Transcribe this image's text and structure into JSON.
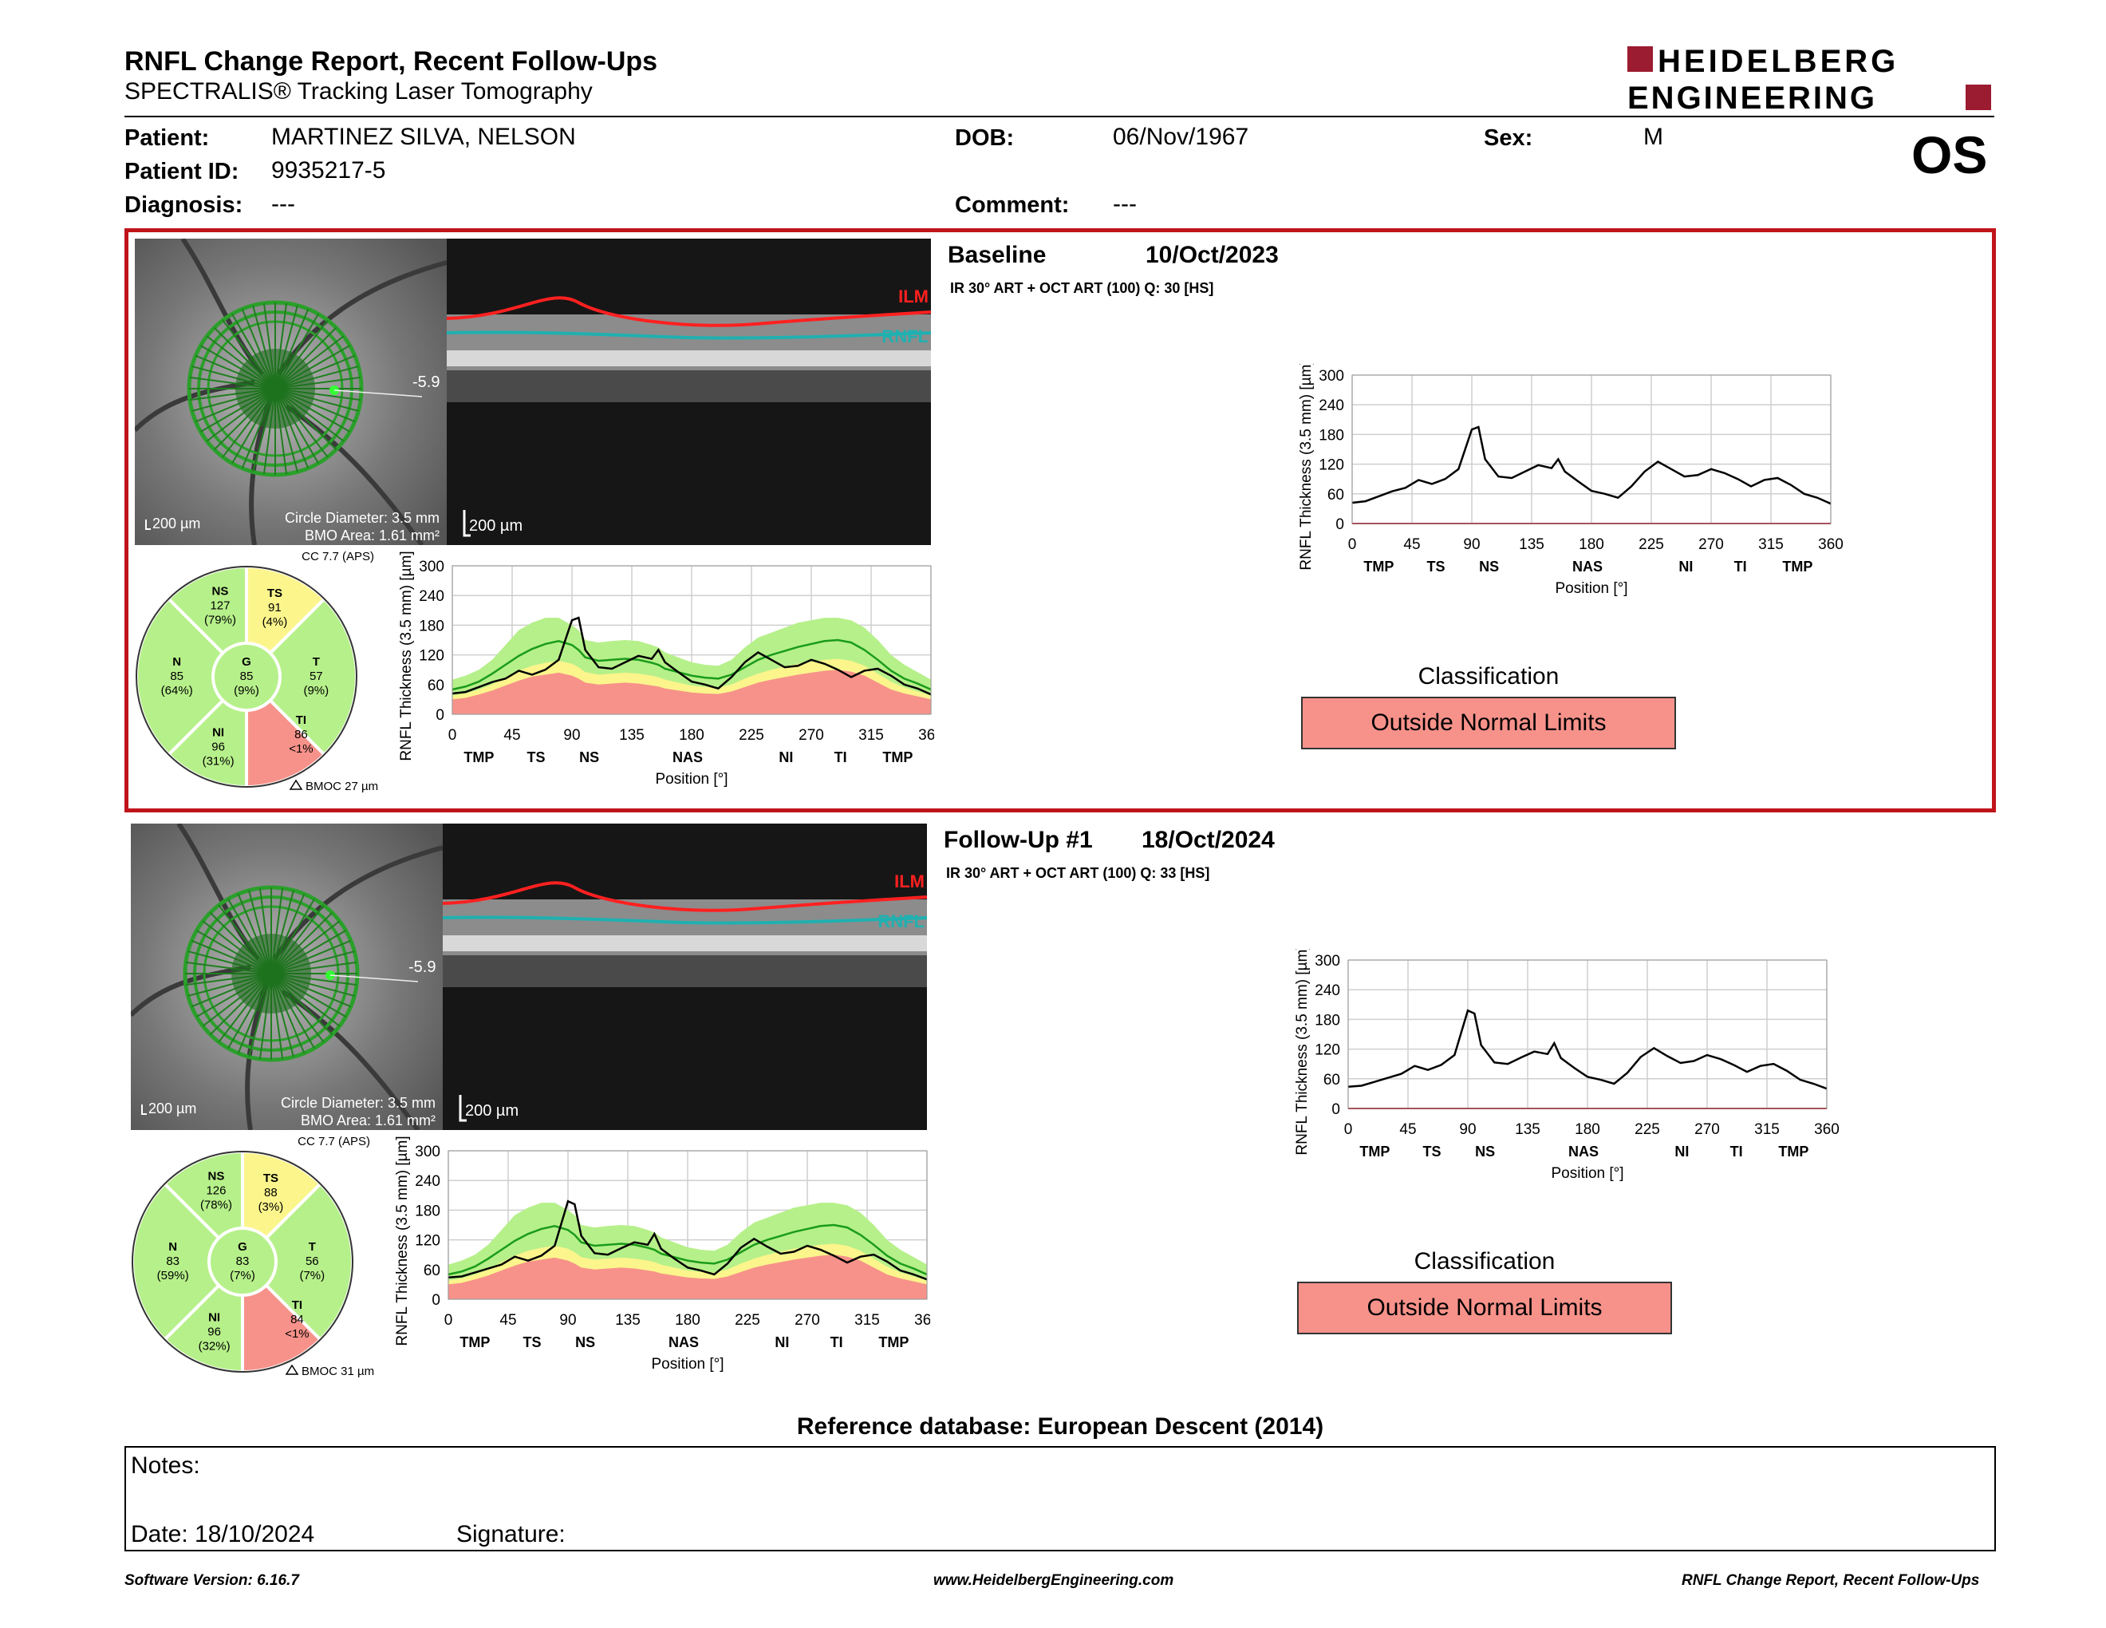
{
  "report": {
    "title": "RNFL Change Report, Recent Follow-Ups",
    "subtitle": "SPECTRALIS® Tracking Laser Tomography",
    "logo_line1": "HEIDELBERG",
    "logo_line2": "ENGINEERING",
    "eye": "OS"
  },
  "patient": {
    "name_label": "Patient:",
    "name": "MARTINEZ SILVA, NELSON",
    "id_label": "Patient ID:",
    "id": "9935217-5",
    "diagnosis_label": "Diagnosis:",
    "diagnosis": "---",
    "dob_label": "DOB:",
    "dob": "06/Nov/1967",
    "comment_label": "Comment:",
    "comment": "---",
    "sex_label": "Sex:",
    "sex": "M"
  },
  "exams": [
    {
      "label": "Baseline",
      "date": "10/Oct/2023",
      "scan_info": "IR 30° ART + OCT ART (100) Q: 30 [HS]",
      "fundus_scale": "200 µm",
      "circle_diameter": "Circle Diameter: 3.5 mm",
      "bmo_area": "BMO Area: 1.61 mm²",
      "angle": "-5.9",
      "oct_scale": "200 µm",
      "ilm": "ILM",
      "rnfl": "RNFL",
      "cc": "CC 7.7 (APS)",
      "bmoc": "BMOC 27 µm",
      "sectors": {
        "NS": {
          "name": "NS",
          "value": "127",
          "pct": "(79%)",
          "color": "#b6f08a"
        },
        "TS": {
          "name": "TS",
          "value": "91",
          "pct": "(4%)",
          "color": "#fbf58c"
        },
        "N": {
          "name": "N",
          "value": "85",
          "pct": "(64%)",
          "color": "#b6f08a"
        },
        "G": {
          "name": "G",
          "value": "85",
          "pct": "(9%)",
          "color": "#b6f08a"
        },
        "T": {
          "name": "T",
          "value": "57",
          "pct": "(9%)",
          "color": "#b6f08a"
        },
        "NI": {
          "name": "NI",
          "value": "96",
          "pct": "(31%)",
          "color": "#b6f08a"
        },
        "TI": {
          "name": "TI",
          "value": "86",
          "pct": "<1%",
          "color": "#f7928a"
        }
      },
      "classification_title": "Classification",
      "classification": "Outside Normal Limits"
    },
    {
      "label": "Follow-Up #1",
      "date": "18/Oct/2024",
      "scan_info": "IR 30° ART + OCT ART (100) Q: 33 [HS]",
      "fundus_scale": "200 µm",
      "circle_diameter": "Circle Diameter: 3.5 mm",
      "bmo_area": "BMO Area: 1.61 mm²",
      "angle": "-5.9",
      "oct_scale": "200 µm",
      "ilm": "ILM",
      "rnfl": "RNFL",
      "cc": "CC 7.7 (APS)",
      "bmoc": "BMOC 31 µm",
      "sectors": {
        "NS": {
          "name": "NS",
          "value": "126",
          "pct": "(78%)",
          "color": "#b6f08a"
        },
        "TS": {
          "name": "TS",
          "value": "88",
          "pct": "(3%)",
          "color": "#fbf58c"
        },
        "N": {
          "name": "N",
          "value": "83",
          "pct": "(59%)",
          "color": "#b6f08a"
        },
        "G": {
          "name": "G",
          "value": "83",
          "pct": "(7%)",
          "color": "#b6f08a"
        },
        "T": {
          "name": "T",
          "value": "56",
          "pct": "(7%)",
          "color": "#b6f08a"
        },
        "NI": {
          "name": "NI",
          "value": "96",
          "pct": "(32%)",
          "color": "#b6f08a"
        },
        "TI": {
          "name": "TI",
          "value": "84",
          "pct": "<1%",
          "color": "#f7928a"
        }
      },
      "classification_title": "Classification",
      "classification": "Outside Normal Limits"
    }
  ],
  "chart_data": [
    {
      "type": "line",
      "ylabel": "RNFL Thickness (3.5 mm) [µm]",
      "xlabel": "Position [°]",
      "xlim": [
        0,
        360
      ],
      "ylim": [
        0,
        300
      ],
      "xticks": [
        0,
        45,
        90,
        135,
        180,
        225,
        270,
        315,
        360
      ],
      "yticks": [
        0,
        60,
        120,
        180,
        240,
        300
      ],
      "sector_labels": [
        {
          "text": "TMP",
          "x": 20
        },
        {
          "text": "TS",
          "x": 63
        },
        {
          "text": "NS",
          "x": 103
        },
        {
          "text": "NAS",
          "x": 177
        },
        {
          "text": "NI",
          "x": 251
        },
        {
          "text": "TI",
          "x": 292
        },
        {
          "text": "TMP",
          "x": 335
        }
      ],
      "x": [
        0,
        10,
        20,
        30,
        40,
        50,
        60,
        70,
        80,
        90,
        95,
        100,
        110,
        120,
        130,
        140,
        150,
        155,
        160,
        170,
        180,
        190,
        200,
        210,
        220,
        230,
        240,
        250,
        260,
        270,
        280,
        290,
        300,
        310,
        320,
        330,
        340,
        350,
        360
      ],
      "series": [
        {
          "values": [
            42,
            45,
            55,
            65,
            72,
            88,
            80,
            90,
            110,
            190,
            195,
            130,
            95,
            92,
            105,
            118,
            112,
            130,
            105,
            85,
            66,
            60,
            52,
            75,
            105,
            125,
            110,
            95,
            98,
            110,
            102,
            90,
            75,
            88,
            92,
            78,
            60,
            52,
            40
          ]
        },
        {
          "name": "normal_band_upper",
          "values": [
            70,
            78,
            90,
            110,
            140,
            170,
            185,
            195,
            195,
            180,
            170,
            150,
            145,
            148,
            150,
            148,
            140,
            135,
            125,
            115,
            105,
            100,
            98,
            110,
            135,
            155,
            165,
            175,
            185,
            190,
            195,
            195,
            190,
            175,
            150,
            120,
            100,
            85,
            70
          ]
        },
        {
          "name": "median",
          "values": [
            50,
            56,
            66,
            82,
            100,
            118,
            132,
            142,
            148,
            140,
            130,
            115,
            108,
            110,
            112,
            110,
            104,
            100,
            92,
            85,
            78,
            74,
            72,
            80,
            95,
            110,
            120,
            128,
            136,
            142,
            148,
            150,
            145,
            130,
            110,
            88,
            72,
            62,
            50
          ]
        },
        {
          "name": "borderline",
          "values": [
            38,
            42,
            50,
            60,
            75,
            88,
            98,
            104,
            108,
            102,
            95,
            85,
            80,
            82,
            84,
            82,
            78,
            75,
            70,
            64,
            58,
            55,
            54,
            60,
            72,
            82,
            90,
            96,
            102,
            106,
            110,
            112,
            108,
            98,
            82,
            66,
            54,
            46,
            38
          ]
        },
        {
          "name": "outside_limit",
          "values": [
            30,
            33,
            40,
            48,
            58,
            68,
            76,
            80,
            84,
            78,
            72,
            64,
            60,
            62,
            64,
            62,
            58,
            56,
            52,
            48,
            44,
            42,
            41,
            46,
            55,
            64,
            70,
            75,
            80,
            84,
            88,
            90,
            86,
            78,
            64,
            50,
            42,
            36,
            30
          ]
        }
      ]
    },
    {
      "type": "line",
      "ylabel": "RNFL Thickness (3.5 mm) [µm]",
      "xlabel": "Position [°]",
      "xlim": [
        0,
        360
      ],
      "ylim": [
        0,
        300
      ],
      "xticks": [
        0,
        45,
        90,
        135,
        180,
        225,
        270,
        315,
        360
      ],
      "yticks": [
        0,
        60,
        120,
        180,
        240,
        300
      ],
      "sector_labels": [
        {
          "text": "TMP",
          "x": 20
        },
        {
          "text": "TS",
          "x": 63
        },
        {
          "text": "NS",
          "x": 103
        },
        {
          "text": "NAS",
          "x": 177
        },
        {
          "text": "NI",
          "x": 251
        },
        {
          "text": "TI",
          "x": 292
        },
        {
          "text": "TMP",
          "x": 335
        }
      ],
      "x": [
        0,
        10,
        20,
        30,
        40,
        50,
        60,
        70,
        80,
        90,
        95,
        100,
        110,
        120,
        130,
        140,
        150,
        155,
        160,
        170,
        180,
        190,
        200,
        210,
        220,
        230,
        240,
        250,
        260,
        270,
        280,
        290,
        300,
        310,
        320,
        330,
        340,
        350,
        360
      ],
      "series": [
        {
          "values": [
            44,
            46,
            54,
            62,
            70,
            86,
            78,
            88,
            108,
            198,
            192,
            128,
            93,
            90,
            103,
            115,
            110,
            132,
            102,
            82,
            64,
            58,
            50,
            72,
            104,
            122,
            106,
            92,
            96,
            108,
            100,
            88,
            74,
            86,
            90,
            76,
            58,
            50,
            40
          ]
        },
        {
          "name": "normal_band_upper",
          "values": [
            70,
            78,
            90,
            110,
            140,
            170,
            185,
            195,
            195,
            180,
            170,
            150,
            145,
            148,
            150,
            148,
            140,
            135,
            125,
            115,
            105,
            100,
            98,
            110,
            135,
            155,
            165,
            175,
            185,
            190,
            195,
            195,
            190,
            175,
            150,
            120,
            100,
            85,
            70
          ]
        },
        {
          "name": "median",
          "values": [
            50,
            56,
            66,
            82,
            100,
            118,
            132,
            142,
            148,
            140,
            130,
            115,
            108,
            110,
            112,
            110,
            104,
            100,
            92,
            85,
            78,
            74,
            72,
            80,
            95,
            110,
            120,
            128,
            136,
            142,
            148,
            150,
            145,
            130,
            110,
            88,
            72,
            62,
            50
          ]
        },
        {
          "name": "borderline",
          "values": [
            38,
            42,
            50,
            60,
            75,
            88,
            98,
            104,
            108,
            102,
            95,
            85,
            80,
            82,
            84,
            82,
            78,
            75,
            70,
            64,
            58,
            55,
            54,
            60,
            72,
            82,
            90,
            96,
            102,
            106,
            110,
            112,
            108,
            98,
            82,
            66,
            54,
            46,
            38
          ]
        },
        {
          "name": "outside_limit",
          "values": [
            30,
            33,
            40,
            48,
            58,
            68,
            76,
            80,
            84,
            78,
            72,
            64,
            60,
            62,
            64,
            62,
            58,
            56,
            52,
            48,
            44,
            42,
            41,
            46,
            55,
            64,
            70,
            75,
            80,
            84,
            88,
            90,
            86,
            78,
            64,
            50,
            42,
            36,
            30
          ]
        }
      ]
    }
  ],
  "reference_db": "Reference database: European Descent (2014)",
  "notes": {
    "label": "Notes:",
    "date": "Date: 18/10/2024",
    "signature": "Signature:"
  },
  "footer": {
    "left": "Software Version: 6.16.7",
    "center": "www.HeidelbergEngineering.com",
    "right": "RNFL Change Report, Recent Follow-Ups"
  }
}
